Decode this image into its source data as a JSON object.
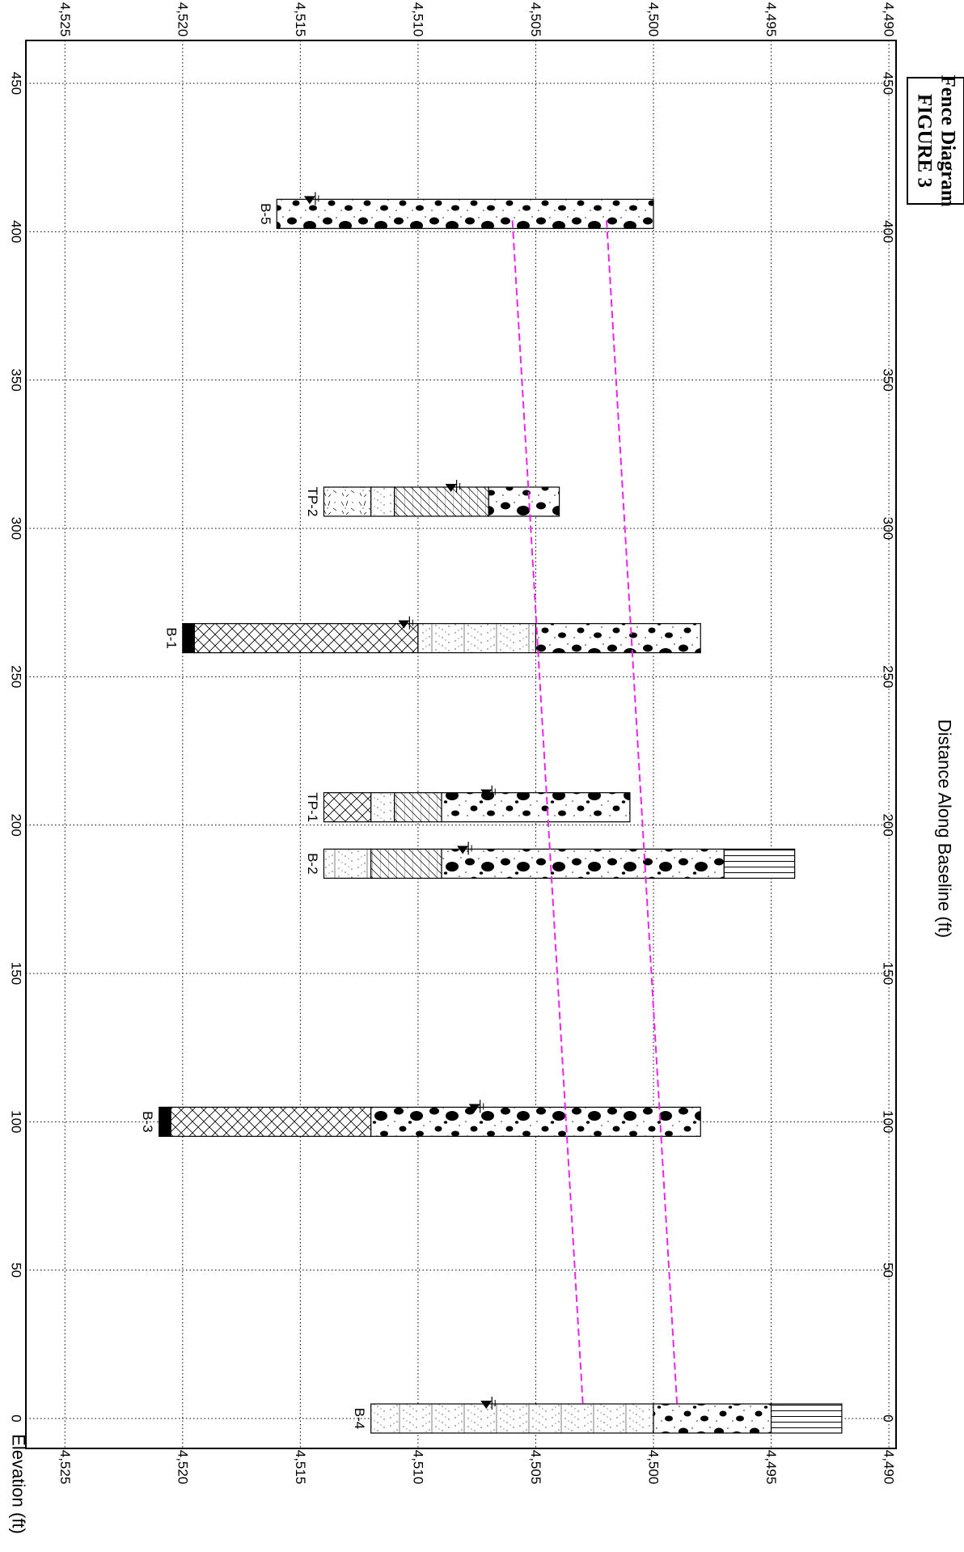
{
  "figure": {
    "title": "FIGURE 3",
    "subtitle": "Fence Diagram"
  },
  "chart_data": {
    "type": "fence-diagram",
    "xlabel": "Distance Along Baseline (ft)",
    "ylabel": "Elevation (ft)",
    "xlim": [
      -10,
      460
    ],
    "ylim": [
      4490,
      4527
    ],
    "x_ticks": [
      0,
      50,
      100,
      150,
      200,
      250,
      300,
      350,
      400,
      450
    ],
    "y_ticks": [
      4490,
      4495,
      4500,
      4505,
      4510,
      4515,
      4520,
      4525
    ],
    "y_tick_labels": [
      "4,490",
      "4,495",
      "4,500",
      "4,505",
      "4,510",
      "4,515",
      "4,520",
      "4,525"
    ],
    "grid": true,
    "rotation": "figure rotated 90 degrees clockwise",
    "borings": [
      {
        "name": "B-4",
        "x": 0,
        "water_level": 4507,
        "layers": [
          {
            "pattern": "silt-sand",
            "top": 4512,
            "bottom": 4500
          },
          {
            "pattern": "gravel-cobbles",
            "top": 4500,
            "bottom": 4495
          },
          {
            "pattern": "bedrock",
            "top": 4495,
            "bottom": 4492
          }
        ]
      },
      {
        "name": "B-3",
        "x": 100,
        "water_level": 4507.5,
        "layers": [
          {
            "pattern": "asphalt",
            "top": 4521,
            "bottom": 4520.5
          },
          {
            "pattern": "fill",
            "top": 4520.5,
            "bottom": 4512
          },
          {
            "pattern": "gravel-cobbles",
            "top": 4512,
            "bottom": 4498
          }
        ]
      },
      {
        "name": "B-2",
        "x": 187,
        "water_level": 4508,
        "layers": [
          {
            "pattern": "silt-sand",
            "top": 4514,
            "bottom": 4512
          },
          {
            "pattern": "silty-clay",
            "top": 4512,
            "bottom": 4509
          },
          {
            "pattern": "gravel-cobbles",
            "top": 4509,
            "bottom": 4497
          },
          {
            "pattern": "bedrock",
            "top": 4497,
            "bottom": 4494
          }
        ]
      },
      {
        "name": "TP-1",
        "x": 206,
        "water_level": 4507,
        "layers": [
          {
            "pattern": "fill",
            "top": 4514,
            "bottom": 4512
          },
          {
            "pattern": "silt-sand",
            "top": 4512,
            "bottom": 4511
          },
          {
            "pattern": "silty-clay",
            "top": 4511,
            "bottom": 4509
          },
          {
            "pattern": "gravel-cobbles",
            "top": 4509,
            "bottom": 4501
          }
        ]
      },
      {
        "name": "B-1",
        "x": 263,
        "water_level": 4510.5,
        "layers": [
          {
            "pattern": "asphalt",
            "top": 4520,
            "bottom": 4519.5
          },
          {
            "pattern": "fill",
            "top": 4519.5,
            "bottom": 4510
          },
          {
            "pattern": "silt-sand",
            "top": 4510,
            "bottom": 4505
          },
          {
            "pattern": "gravel-cobbles",
            "top": 4505,
            "bottom": 4498
          }
        ]
      },
      {
        "name": "TP-2",
        "x": 309,
        "water_level": 4508.5,
        "layers": [
          {
            "pattern": "topsoil",
            "top": 4514,
            "bottom": 4512
          },
          {
            "pattern": "silt-sand",
            "top": 4512,
            "bottom": 4511
          },
          {
            "pattern": "silty-clay",
            "top": 4511,
            "bottom": 4507
          },
          {
            "pattern": "gravel-cobbles",
            "top": 4507,
            "bottom": 4504
          }
        ]
      },
      {
        "name": "B-5",
        "x": 406,
        "water_level": 4514.5,
        "layers": [
          {
            "pattern": "gravel-cobbles",
            "top": 4516,
            "bottom": 4500
          }
        ]
      }
    ],
    "interpolation_lines": {
      "color": "#ee22ee",
      "upper": [
        {
          "x": 5,
          "y": 4503
        },
        {
          "x": 405,
          "y": 4506
        }
      ],
      "lower": [
        {
          "x": 5,
          "y": 4499
        },
        {
          "x": 405,
          "y": 4502
        }
      ]
    }
  }
}
